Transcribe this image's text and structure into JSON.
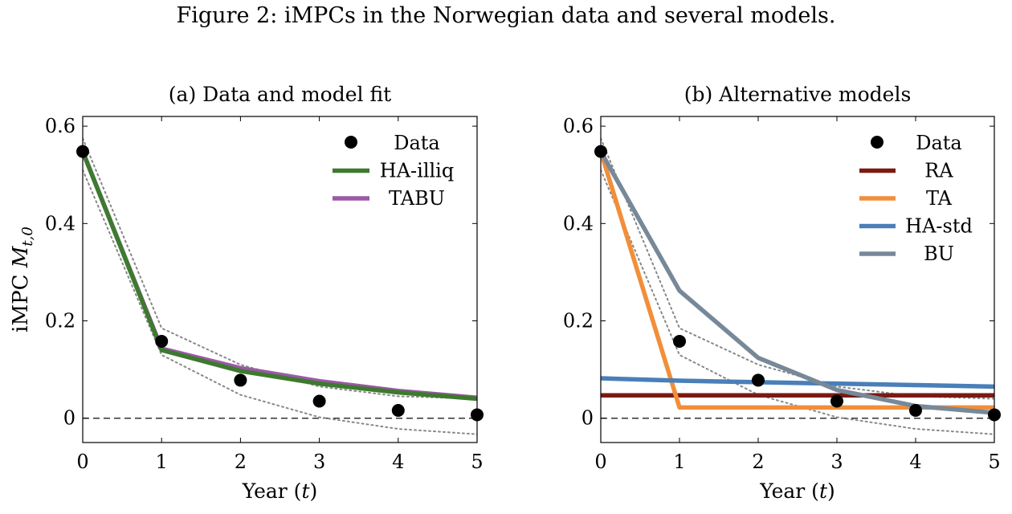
{
  "figure": {
    "title": "Figure 2: iMPCs in the Norwegian data and several models."
  },
  "colors": {
    "data": "#000000",
    "HA-illiq": "#3d7a2f",
    "TABU": "#9b59a6",
    "RA": "#7a1a12",
    "TA": "#f28e3a",
    "HA-std": "#4a7fb8",
    "BU": "#778899",
    "bands": "#888888",
    "zero": "#333333"
  },
  "chart_data": [
    {
      "type": "line",
      "title": "(a) Data and model fit",
      "xlabel": "Year (t)",
      "ylabel": "iMPC M_{t,0}",
      "xlim": [
        0,
        5
      ],
      "ylim": [
        -0.05,
        0.62
      ],
      "xticks": [
        "0",
        "1",
        "2",
        "3",
        "4",
        "5"
      ],
      "yticks": [
        "0",
        "0.2",
        "0.4",
        "0.6"
      ],
      "legend_position": "top-right",
      "legend": [
        "Data",
        "HA-illiq",
        "TABU"
      ],
      "data_points": {
        "name": "Data",
        "x": [
          0,
          1,
          2,
          3,
          4,
          5
        ],
        "y": [
          0.548,
          0.158,
          0.078,
          0.035,
          0.016,
          0.007
        ]
      },
      "bands": [
        {
          "x": [
            0,
            1,
            2,
            3,
            4,
            5
          ],
          "y": [
            0.575,
            0.185,
            0.11,
            0.065,
            0.045,
            0.04
          ]
        },
        {
          "x": [
            0,
            1,
            2,
            3,
            4,
            5
          ],
          "y": [
            0.51,
            0.13,
            0.048,
            0.002,
            -0.022,
            -0.033
          ]
        }
      ],
      "series": [
        {
          "name": "TABU",
          "x": [
            0,
            1,
            2,
            3,
            4,
            5
          ],
          "y": [
            0.548,
            0.143,
            0.103,
            0.076,
            0.056,
            0.042
          ]
        },
        {
          "name": "HA-illiq",
          "x": [
            0,
            1,
            2,
            3,
            4,
            5
          ],
          "y": [
            0.548,
            0.14,
            0.097,
            0.071,
            0.053,
            0.04
          ]
        }
      ],
      "zero_line": true
    },
    {
      "type": "line",
      "title": "(b) Alternative models",
      "xlabel": "Year (t)",
      "ylabel": "",
      "xlim": [
        0,
        5
      ],
      "ylim": [
        -0.05,
        0.62
      ],
      "xticks": [
        "0",
        "1",
        "2",
        "3",
        "4",
        "5"
      ],
      "yticks": [
        "0",
        "0.2",
        "0.4",
        "0.6"
      ],
      "legend_position": "top-right",
      "legend": [
        "Data",
        "RA",
        "TA",
        "HA-std",
        "BU"
      ],
      "data_points": {
        "name": "Data",
        "x": [
          0,
          1,
          2,
          3,
          4,
          5
        ],
        "y": [
          0.548,
          0.158,
          0.078,
          0.035,
          0.016,
          0.007
        ]
      },
      "bands": [
        {
          "x": [
            0,
            1,
            2,
            3,
            4,
            5
          ],
          "y": [
            0.575,
            0.185,
            0.11,
            0.065,
            0.045,
            0.04
          ]
        },
        {
          "x": [
            0,
            1,
            2,
            3,
            4,
            5
          ],
          "y": [
            0.51,
            0.13,
            0.048,
            0.002,
            -0.022,
            -0.033
          ]
        }
      ],
      "series": [
        {
          "name": "RA",
          "x": [
            0,
            1,
            2,
            3,
            4,
            5
          ],
          "y": [
            0.047,
            0.047,
            0.047,
            0.047,
            0.047,
            0.047
          ]
        },
        {
          "name": "TA",
          "x": [
            0,
            1,
            2,
            3,
            4,
            5
          ],
          "y": [
            0.548,
            0.022,
            0.022,
            0.022,
            0.022,
            0.022
          ]
        },
        {
          "name": "HA-std",
          "x": [
            0,
            1,
            2,
            3,
            4,
            5
          ],
          "y": [
            0.082,
            0.077,
            0.074,
            0.071,
            0.068,
            0.065
          ]
        },
        {
          "name": "BU",
          "x": [
            0,
            1,
            2,
            3,
            4,
            5
          ],
          "y": [
            0.548,
            0.262,
            0.124,
            0.058,
            0.025,
            0.011
          ]
        }
      ],
      "zero_line": true
    }
  ]
}
